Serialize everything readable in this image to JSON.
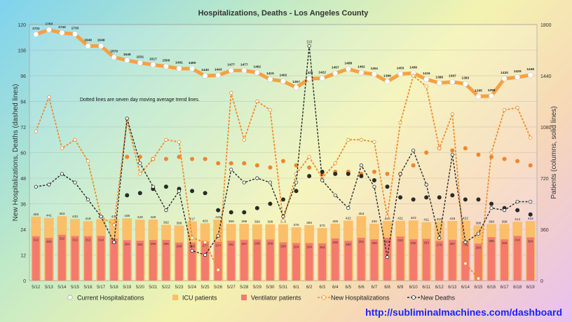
{
  "url_text": "http://subliminalmachines.com/dashboard",
  "chart_data": {
    "type": "bar",
    "title": "Hospitalizations, Deaths - Los Angeles County",
    "annotation": "Dotted lines are seven day moving average trend lines.",
    "ylabel_left": "New Hospitalizations, Deaths (dashed lines)",
    "ylabel_right": "Patients (columns, solid lines)",
    "ylim_left": [
      0,
      120
    ],
    "ylim_right": [
      0,
      1800
    ],
    "left_ticks": [
      0,
      12,
      24,
      36,
      48,
      60,
      72,
      84,
      96,
      108,
      120
    ],
    "right_ticks": [
      0,
      360,
      720,
      1080,
      1440,
      1800
    ],
    "categories": [
      "5/12",
      "5/13",
      "5/14",
      "5/15",
      "5/16",
      "5/17",
      "5/18",
      "5/19",
      "5/20",
      "5/21",
      "5/22",
      "5/23",
      "5/24",
      "5/25",
      "5/26",
      "5/27",
      "5/28",
      "5/29",
      "5/30",
      "5/31",
      "6/1",
      "6/2",
      "6/3",
      "6/4",
      "6/5",
      "6/6",
      "6/7",
      "6/8",
      "6/9",
      "6/10",
      "6/11",
      "6/12",
      "6/13",
      "6/14",
      "6/15",
      "6/16",
      "6/17",
      "6/18",
      "6/19"
    ],
    "series": [
      {
        "name": "Current Hospitalizations",
        "axis": "right",
        "color": "#f5a142",
        "values": [
          1731,
          1763,
          1742,
          1733,
          1649,
          1649,
          1570,
          1549,
          1531,
          1517,
          1506,
          1491,
          1490,
          1440,
          1443,
          1477,
          1477,
          1462,
          1415,
          1402,
          1357,
          1420,
          1422,
          1457,
          1488,
          1462,
          1451,
          1399,
          1453,
          1458,
          1416,
          1389,
          1397,
          1383,
          1295,
          1298,
          1420,
          1429,
          1446
        ]
      },
      {
        "name": "ICU patients",
        "axis": "right",
        "color": "#fbbf6a",
        "values": [
          450,
          441,
          453,
          433,
          418,
          432,
          434,
          438,
          429,
          429,
          392,
          388,
          417,
          403,
          429,
          399,
          399,
          396,
          396,
          396,
          375,
          390,
          370,
          400,
          422,
          453,
          400,
          420,
          421,
          423,
          411,
          415,
          419,
          422,
          388,
          398,
          398,
          414,
          419
        ]
      },
      {
        "name": "Ventilator patients",
        "axis": "right",
        "color": "#f47a6e",
        "values": [
          312,
          300,
          322,
          313,
          312,
          314,
          296,
          284,
          281,
          286,
          286,
          268,
          268,
          274,
          274,
          281,
          287,
          289,
          289,
          269,
          264,
          264,
          262,
          296,
          280,
          301,
          290,
          301,
          310,
          290,
          293,
          279,
          287,
          276,
          260,
          305,
          290,
          314,
          304
        ]
      },
      {
        "name": "New Hospitalizations",
        "axis": "left",
        "color": "#f08a28",
        "values": [
          70,
          86,
          62,
          66,
          56,
          30,
          26,
          75,
          50,
          57,
          66,
          65,
          20,
          18,
          5,
          88,
          66,
          84,
          80,
          28,
          50,
          58,
          48,
          55,
          66,
          66,
          65,
          30,
          74,
          96,
          91,
          62,
          78,
          8,
          1,
          60,
          80,
          81,
          67
        ]
      },
      {
        "name": "New Deaths",
        "axis": "left",
        "color": "#2a2a2a",
        "values": [
          44,
          45,
          50,
          46,
          38,
          30,
          18,
          76,
          55,
          44,
          33,
          42,
          14,
          12,
          21,
          52,
          46,
          48,
          46,
          30,
          46,
          110,
          47,
          40,
          34,
          54,
          44,
          11,
          50,
          61,
          45,
          20,
          59,
          18,
          22,
          34,
          33,
          37,
          37
        ]
      },
      {
        "name": "New Hospitalizations 7-day avg",
        "axis": "left",
        "color": "#f0852c",
        "values": [
          null,
          null,
          null,
          null,
          null,
          null,
          null,
          58,
          58,
          57,
          57,
          58,
          57,
          57,
          55,
          55,
          55,
          54,
          53,
          56,
          54,
          53,
          50,
          51,
          51,
          50,
          51,
          50,
          50,
          54,
          60,
          62,
          61,
          62,
          59,
          58,
          57,
          56,
          54
        ]
      },
      {
        "name": "New Deaths 7-day avg",
        "axis": "left",
        "color": "#2a2a2a",
        "values": [
          null,
          null,
          null,
          null,
          null,
          null,
          null,
          40,
          41,
          43,
          44,
          43,
          42,
          41,
          33,
          32,
          32,
          34,
          36,
          38,
          42,
          49,
          51,
          50,
          50,
          49,
          47,
          44,
          39,
          38,
          39,
          39,
          40,
          38,
          38,
          36,
          34,
          33,
          31
        ]
      }
    ],
    "point_labels": {
      "hosp": [
        "1731",
        "1763",
        "1742",
        "1733",
        "1649",
        "1649",
        "1570",
        "1549",
        "1531",
        "1517",
        "1506",
        "1491",
        "1490",
        "1440",
        "1443",
        "1477",
        "1477",
        "1462",
        "1415",
        "1402",
        "1357",
        "1420",
        "1422",
        "1457",
        "1488",
        "1462",
        "1451",
        "1399",
        "1453",
        "1458",
        "1416",
        "1389",
        "1397",
        "1383",
        "1295",
        "1298",
        "1420",
        "1429",
        "1446"
      ],
      "deaths_peak": "110"
    },
    "legend": [
      "Current Hospitalizations",
      "ICU patients",
      "Ventilator patients",
      "New Hospitalizations",
      "New Deaths"
    ],
    "legend_position": "bottom",
    "grid": true
  }
}
